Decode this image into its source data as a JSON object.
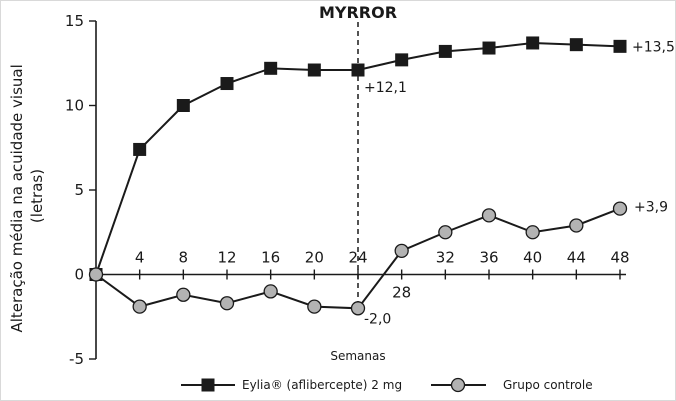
{
  "chart_data": {
    "type": "line",
    "title": "MYRROR",
    "xlabel": "Semanas",
    "ylabel_lines": [
      "Alteração média na acuidade visual",
      "(letras)"
    ],
    "x": [
      0,
      4,
      8,
      12,
      16,
      20,
      24,
      28,
      32,
      36,
      40,
      44,
      48
    ],
    "x_tick_labels": [
      "4",
      "8",
      "12",
      "16",
      "20",
      "24",
      "28",
      "32",
      "36",
      "40",
      "44",
      "48"
    ],
    "y_tick_labels": [
      "15",
      "10",
      "5",
      "0",
      "-5"
    ],
    "xlim": [
      0,
      48
    ],
    "ylim": [
      -5,
      15
    ],
    "series": [
      {
        "name": "Eylia® (aflibercepte) 2 mg",
        "marker": "square",
        "color": "#1a1a1a",
        "values": [
          0,
          7.4,
          10.0,
          11.3,
          12.2,
          12.1,
          12.1,
          12.7,
          13.2,
          13.4,
          13.7,
          13.6,
          13.5
        ]
      },
      {
        "name": "Grupo controle",
        "marker": "circle",
        "color": "#b3b3b3",
        "values": [
          0,
          -1.9,
          -1.2,
          -1.7,
          -1.0,
          -1.9,
          -2.0,
          1.4,
          2.5,
          3.5,
          2.5,
          2.9,
          3.9
        ]
      }
    ],
    "annotations": [
      {
        "text": "+13,5",
        "x": 48,
        "y": 13.5
      },
      {
        "text": "+12,1",
        "x": 24,
        "y": 12.1
      },
      {
        "text": "+3,9",
        "x": 48,
        "y": 3.9
      },
      {
        "text": "-2,0",
        "x": 24,
        "y": -2.0
      }
    ],
    "reference_line_x": 24,
    "grid": false,
    "legend_position": "bottom"
  }
}
